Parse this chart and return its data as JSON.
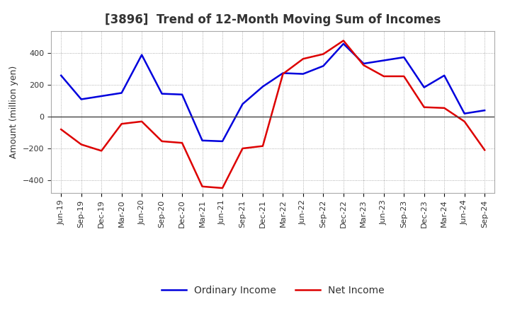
{
  "title": "[3896]  Trend of 12-Month Moving Sum of Incomes",
  "ylabel": "Amount (million yen)",
  "x_labels": [
    "Jun-19",
    "Sep-19",
    "Dec-19",
    "Mar-20",
    "Jun-20",
    "Sep-20",
    "Dec-20",
    "Mar-21",
    "Jun-21",
    "Sep-21",
    "Dec-21",
    "Mar-22",
    "Jun-22",
    "Sep-22",
    "Dec-22",
    "Mar-23",
    "Jun-23",
    "Sep-23",
    "Dec-23",
    "Mar-24",
    "Jun-24",
    "Sep-24"
  ],
  "ordinary_income": [
    260,
    110,
    130,
    150,
    390,
    145,
    140,
    -150,
    -155,
    80,
    190,
    275,
    270,
    320,
    460,
    335,
    355,
    375,
    185,
    260,
    20,
    40
  ],
  "net_income": [
    -80,
    -175,
    -215,
    -45,
    -30,
    -155,
    -165,
    -440,
    -450,
    -200,
    -185,
    270,
    365,
    395,
    480,
    325,
    255,
    255,
    60,
    55,
    -30,
    -210
  ],
  "ordinary_income_color": "#0000dd",
  "net_income_color": "#dd0000",
  "ylim": [
    -480,
    540
  ],
  "yticks": [
    -400,
    -200,
    0,
    200,
    400
  ],
  "background_color": "#ffffff",
  "grid_color": "#999999",
  "legend_labels": [
    "Ordinary Income",
    "Net Income"
  ],
  "line_width": 1.8,
  "title_color": "#333333",
  "title_fontsize": 12,
  "tick_fontsize": 8,
  "ylabel_fontsize": 9
}
